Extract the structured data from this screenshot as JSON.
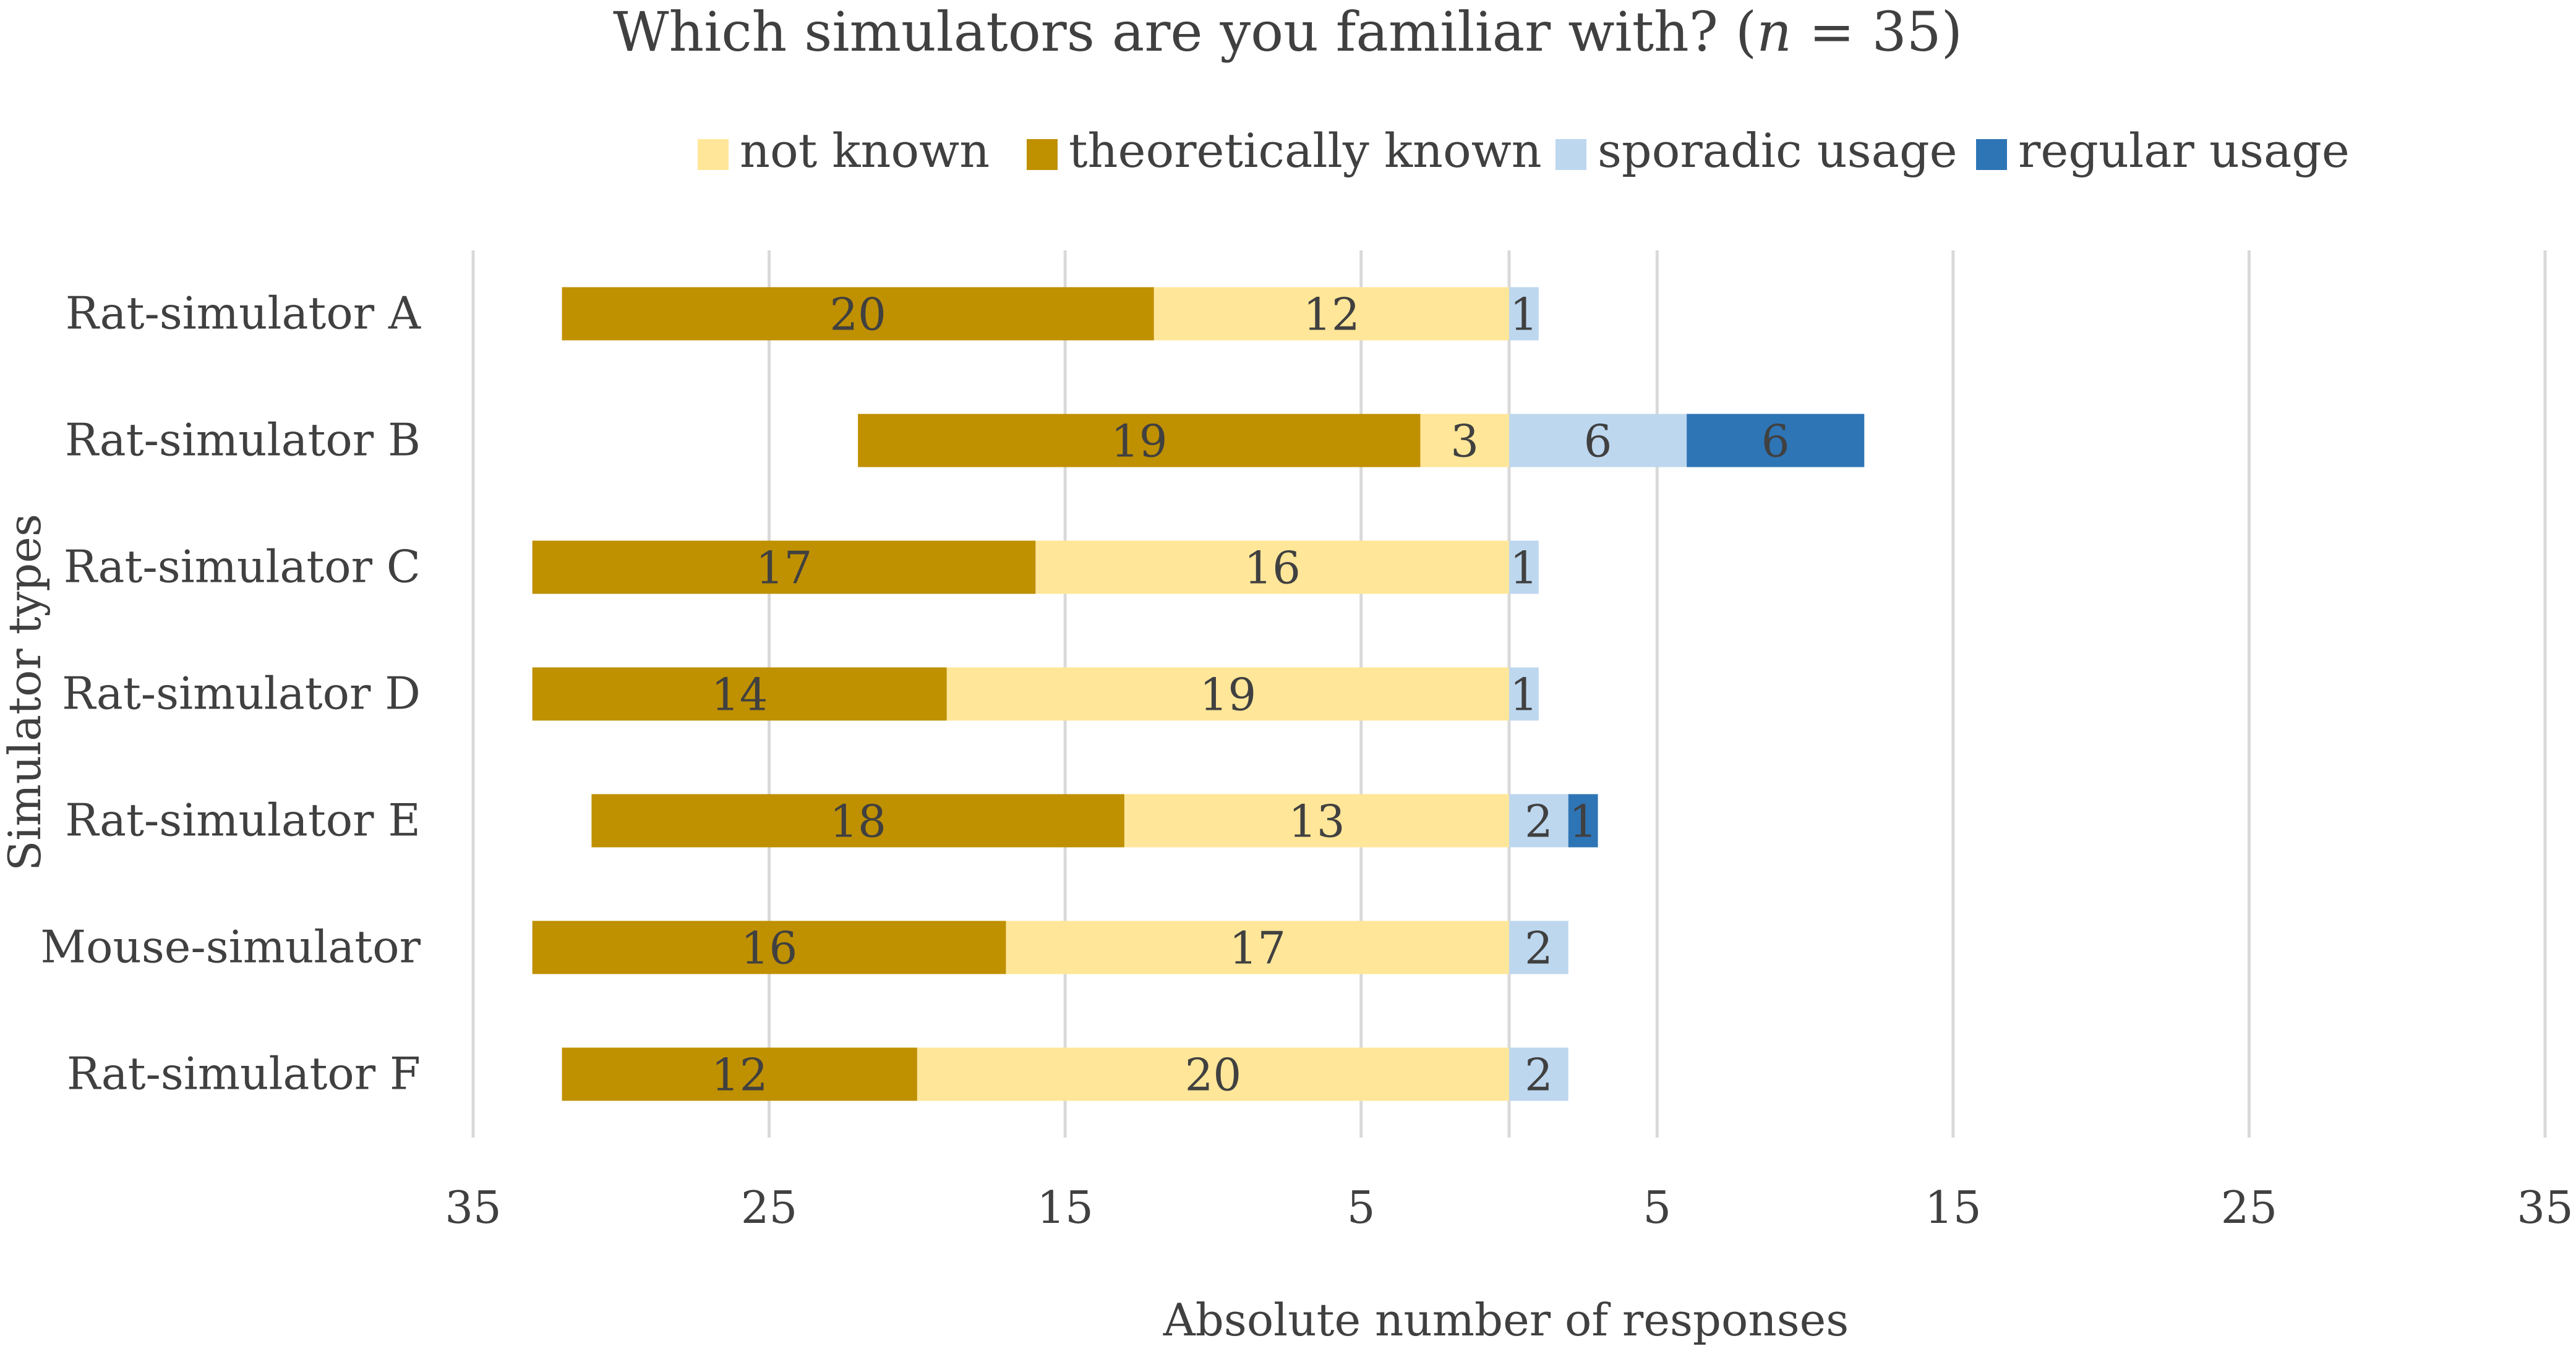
{
  "chart_data": {
    "type": "bar",
    "orientation": "horizontal",
    "stacking": "diverging",
    "title": "Which simulators are you familiar with? (",
    "title_n": "n",
    "title_tail": " = 35)",
    "xlabel": "Absolute number of responses",
    "ylabel": "Simulator types",
    "xlim": [
      -35,
      35
    ],
    "xticks": [
      -35,
      -25,
      -15,
      -5,
      5,
      15,
      25,
      35
    ],
    "xtick_labels": [
      "35",
      "25",
      "15",
      "5",
      "5",
      "15",
      "25",
      "35"
    ],
    "grid": true,
    "legend_position": "top",
    "categories": [
      "Rat-simulator A",
      "Rat-simulator B",
      "Rat-simulator C",
      "Rat-simulator D",
      "Rat-simulator E",
      "Mouse-simulator",
      "Rat-simulator F"
    ],
    "series": [
      {
        "name": "not known",
        "side": "negative",
        "color": "#FFE699",
        "values": [
          12,
          3,
          16,
          19,
          13,
          17,
          20
        ]
      },
      {
        "name": "theoretically known",
        "side": "negative",
        "color": "#BF9000",
        "values": [
          20,
          19,
          17,
          14,
          18,
          16,
          12
        ]
      },
      {
        "name": "sporadic usage",
        "side": "positive",
        "color": "#BDD7EE",
        "values": [
          1,
          6,
          1,
          1,
          2,
          2,
          2
        ]
      },
      {
        "name": "regular usage",
        "side": "positive",
        "color": "#2E75B6",
        "values": [
          0,
          6,
          0,
          0,
          1,
          0,
          0
        ]
      }
    ]
  }
}
